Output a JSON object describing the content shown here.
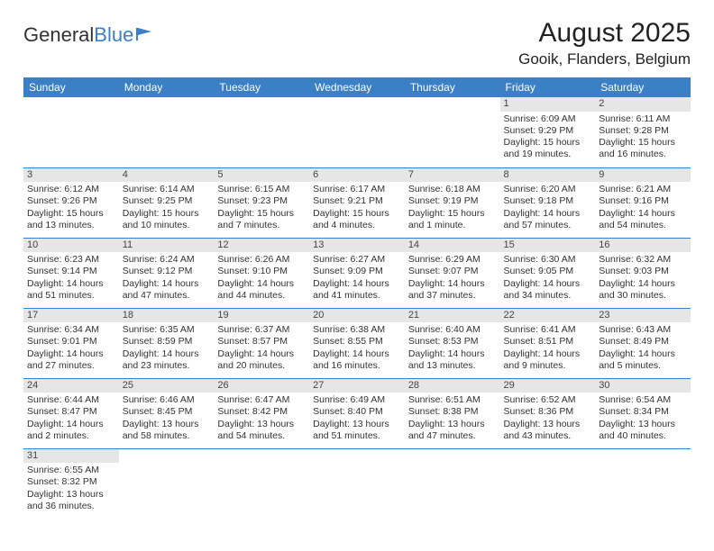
{
  "brand": {
    "part1": "General",
    "part2": "Blue"
  },
  "title": "August 2025",
  "location": "Gooik, Flanders, Belgium",
  "colors": {
    "header_bg": "#3b7fc4",
    "header_fg": "#ffffff",
    "daynum_bg": "#e6e6e6",
    "rule": "#3b7fc4",
    "text": "#333333"
  },
  "weekdays": [
    "Sunday",
    "Monday",
    "Tuesday",
    "Wednesday",
    "Thursday",
    "Friday",
    "Saturday"
  ],
  "weeks": [
    [
      null,
      null,
      null,
      null,
      null,
      {
        "n": "1",
        "sr": "Sunrise: 6:09 AM",
        "ss": "Sunset: 9:29 PM",
        "dl": "Daylight: 15 hours and 19 minutes."
      },
      {
        "n": "2",
        "sr": "Sunrise: 6:11 AM",
        "ss": "Sunset: 9:28 PM",
        "dl": "Daylight: 15 hours and 16 minutes."
      }
    ],
    [
      {
        "n": "3",
        "sr": "Sunrise: 6:12 AM",
        "ss": "Sunset: 9:26 PM",
        "dl": "Daylight: 15 hours and 13 minutes."
      },
      {
        "n": "4",
        "sr": "Sunrise: 6:14 AM",
        "ss": "Sunset: 9:25 PM",
        "dl": "Daylight: 15 hours and 10 minutes."
      },
      {
        "n": "5",
        "sr": "Sunrise: 6:15 AM",
        "ss": "Sunset: 9:23 PM",
        "dl": "Daylight: 15 hours and 7 minutes."
      },
      {
        "n": "6",
        "sr": "Sunrise: 6:17 AM",
        "ss": "Sunset: 9:21 PM",
        "dl": "Daylight: 15 hours and 4 minutes."
      },
      {
        "n": "7",
        "sr": "Sunrise: 6:18 AM",
        "ss": "Sunset: 9:19 PM",
        "dl": "Daylight: 15 hours and 1 minute."
      },
      {
        "n": "8",
        "sr": "Sunrise: 6:20 AM",
        "ss": "Sunset: 9:18 PM",
        "dl": "Daylight: 14 hours and 57 minutes."
      },
      {
        "n": "9",
        "sr": "Sunrise: 6:21 AM",
        "ss": "Sunset: 9:16 PM",
        "dl": "Daylight: 14 hours and 54 minutes."
      }
    ],
    [
      {
        "n": "10",
        "sr": "Sunrise: 6:23 AM",
        "ss": "Sunset: 9:14 PM",
        "dl": "Daylight: 14 hours and 51 minutes."
      },
      {
        "n": "11",
        "sr": "Sunrise: 6:24 AM",
        "ss": "Sunset: 9:12 PM",
        "dl": "Daylight: 14 hours and 47 minutes."
      },
      {
        "n": "12",
        "sr": "Sunrise: 6:26 AM",
        "ss": "Sunset: 9:10 PM",
        "dl": "Daylight: 14 hours and 44 minutes."
      },
      {
        "n": "13",
        "sr": "Sunrise: 6:27 AM",
        "ss": "Sunset: 9:09 PM",
        "dl": "Daylight: 14 hours and 41 minutes."
      },
      {
        "n": "14",
        "sr": "Sunrise: 6:29 AM",
        "ss": "Sunset: 9:07 PM",
        "dl": "Daylight: 14 hours and 37 minutes."
      },
      {
        "n": "15",
        "sr": "Sunrise: 6:30 AM",
        "ss": "Sunset: 9:05 PM",
        "dl": "Daylight: 14 hours and 34 minutes."
      },
      {
        "n": "16",
        "sr": "Sunrise: 6:32 AM",
        "ss": "Sunset: 9:03 PM",
        "dl": "Daylight: 14 hours and 30 minutes."
      }
    ],
    [
      {
        "n": "17",
        "sr": "Sunrise: 6:34 AM",
        "ss": "Sunset: 9:01 PM",
        "dl": "Daylight: 14 hours and 27 minutes."
      },
      {
        "n": "18",
        "sr": "Sunrise: 6:35 AM",
        "ss": "Sunset: 8:59 PM",
        "dl": "Daylight: 14 hours and 23 minutes."
      },
      {
        "n": "19",
        "sr": "Sunrise: 6:37 AM",
        "ss": "Sunset: 8:57 PM",
        "dl": "Daylight: 14 hours and 20 minutes."
      },
      {
        "n": "20",
        "sr": "Sunrise: 6:38 AM",
        "ss": "Sunset: 8:55 PM",
        "dl": "Daylight: 14 hours and 16 minutes."
      },
      {
        "n": "21",
        "sr": "Sunrise: 6:40 AM",
        "ss": "Sunset: 8:53 PM",
        "dl": "Daylight: 14 hours and 13 minutes."
      },
      {
        "n": "22",
        "sr": "Sunrise: 6:41 AM",
        "ss": "Sunset: 8:51 PM",
        "dl": "Daylight: 14 hours and 9 minutes."
      },
      {
        "n": "23",
        "sr": "Sunrise: 6:43 AM",
        "ss": "Sunset: 8:49 PM",
        "dl": "Daylight: 14 hours and 5 minutes."
      }
    ],
    [
      {
        "n": "24",
        "sr": "Sunrise: 6:44 AM",
        "ss": "Sunset: 8:47 PM",
        "dl": "Daylight: 14 hours and 2 minutes."
      },
      {
        "n": "25",
        "sr": "Sunrise: 6:46 AM",
        "ss": "Sunset: 8:45 PM",
        "dl": "Daylight: 13 hours and 58 minutes."
      },
      {
        "n": "26",
        "sr": "Sunrise: 6:47 AM",
        "ss": "Sunset: 8:42 PM",
        "dl": "Daylight: 13 hours and 54 minutes."
      },
      {
        "n": "27",
        "sr": "Sunrise: 6:49 AM",
        "ss": "Sunset: 8:40 PM",
        "dl": "Daylight: 13 hours and 51 minutes."
      },
      {
        "n": "28",
        "sr": "Sunrise: 6:51 AM",
        "ss": "Sunset: 8:38 PM",
        "dl": "Daylight: 13 hours and 47 minutes."
      },
      {
        "n": "29",
        "sr": "Sunrise: 6:52 AM",
        "ss": "Sunset: 8:36 PM",
        "dl": "Daylight: 13 hours and 43 minutes."
      },
      {
        "n": "30",
        "sr": "Sunrise: 6:54 AM",
        "ss": "Sunset: 8:34 PM",
        "dl": "Daylight: 13 hours and 40 minutes."
      }
    ],
    [
      {
        "n": "31",
        "sr": "Sunrise: 6:55 AM",
        "ss": "Sunset: 8:32 PM",
        "dl": "Daylight: 13 hours and 36 minutes."
      },
      null,
      null,
      null,
      null,
      null,
      null
    ]
  ]
}
